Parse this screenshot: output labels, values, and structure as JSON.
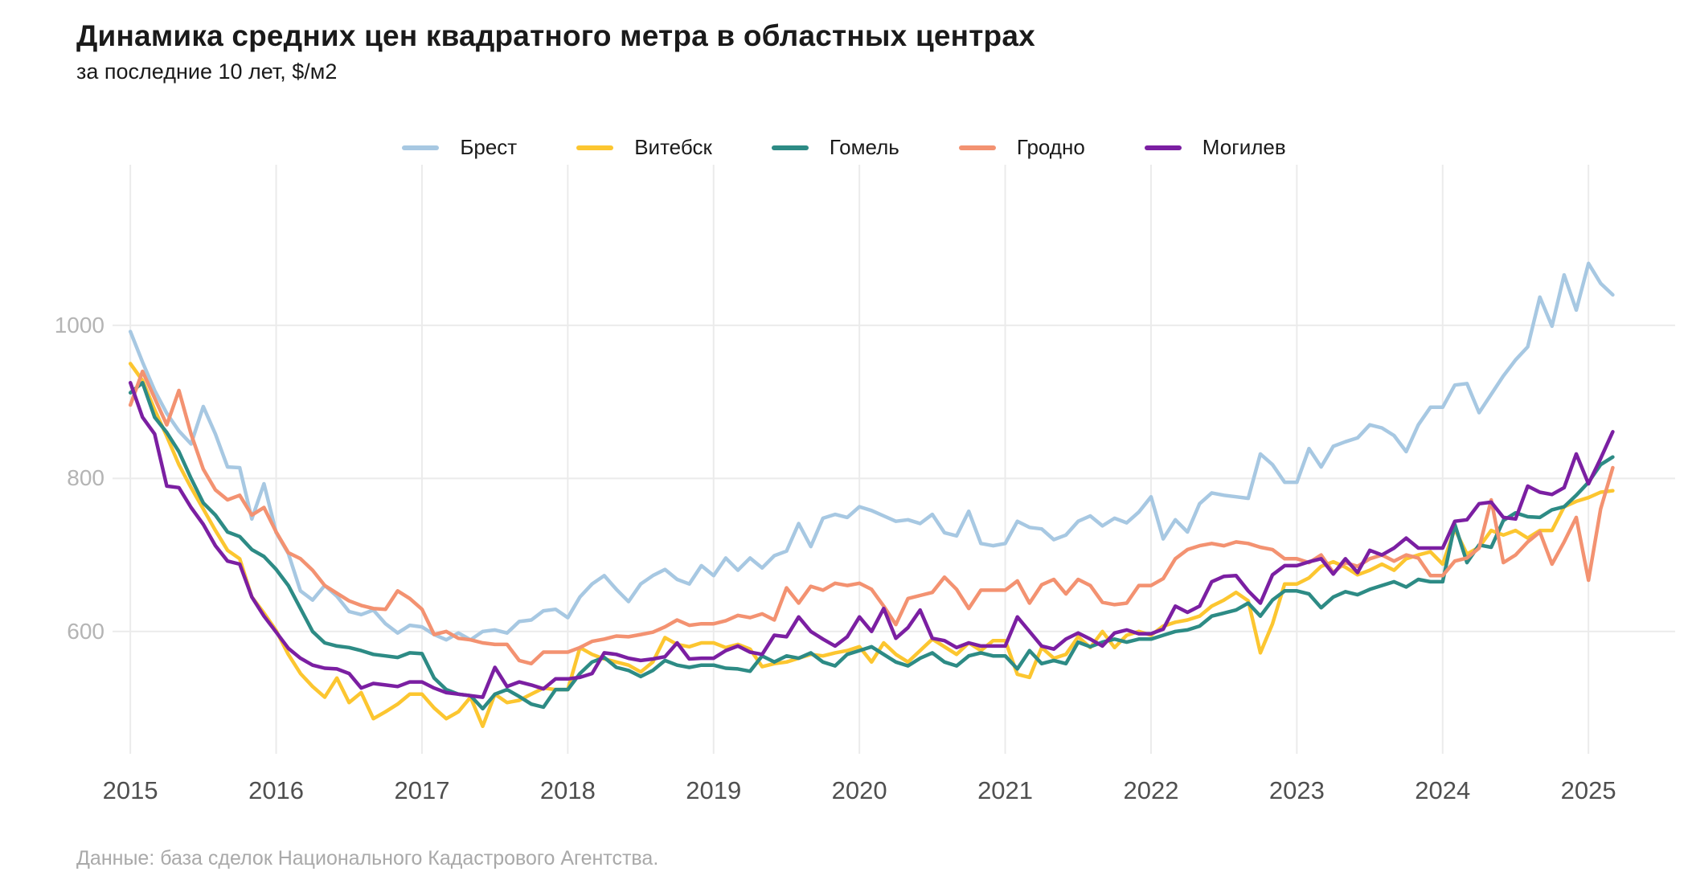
{
  "header": {
    "title": "Динамика средних цен квадратного метра в областных центрах",
    "subtitle": "за последние 10 лет, $/м2"
  },
  "footer": {
    "text": "Данные: база сделок Национального Кадастрового Агентства."
  },
  "colors": {
    "background": "#ffffff",
    "grid": "#ebebeb",
    "y_tick_text": "#b4b4b4",
    "x_tick_text": "#4f4f4f"
  },
  "chart_data": {
    "type": "line",
    "title": "Динамика средних цен квадратного метра в областных центрах",
    "subtitle": "за последние 10 лет, $/м2",
    "xlabel": "",
    "ylabel": "$/м2",
    "x_ticks": [
      2015,
      2016,
      2017,
      2018,
      2019,
      2020,
      2021,
      2022,
      2023,
      2024,
      2025
    ],
    "y_ticks": [
      600,
      800,
      1000
    ],
    "xlim": [
      2014.74,
      2025.6
    ],
    "ylim": [
      438,
      1210
    ],
    "grid": true,
    "legend_position": "top",
    "x_frequency": "monthly",
    "x_start": "2015-01",
    "x_end": "2025-03",
    "series": [
      {
        "name": "Брест",
        "color": "#a7c8e2",
        "values": [
          992,
          952,
          915,
          885,
          862,
          845,
          894,
          858,
          815,
          814,
          747,
          793,
          729,
          702,
          653,
          641,
          660,
          646,
          626,
          622,
          628,
          610,
          598,
          608,
          606,
          596,
          589,
          598,
          589,
          600,
          602,
          598,
          613,
          615,
          627,
          629,
          618,
          645,
          662,
          673,
          655,
          639,
          662,
          673,
          681,
          668,
          662,
          686,
          673,
          696,
          680,
          696,
          683,
          699,
          705,
          741,
          711,
          748,
          753,
          749,
          763,
          758,
          751,
          744,
          746,
          741,
          753,
          729,
          725,
          757,
          715,
          712,
          715,
          744,
          736,
          734,
          720,
          726,
          744,
          751,
          738,
          748,
          742,
          756,
          776,
          721,
          746,
          730,
          767,
          781,
          778,
          776,
          774,
          832,
          818,
          795,
          795,
          839,
          815,
          842,
          848,
          853,
          870,
          866,
          856,
          835,
          870,
          893,
          893,
          922,
          924,
          886,
          910,
          934,
          955,
          972,
          1037,
          999,
          1066,
          1020,
          1081,
          1055,
          1040
        ]
      },
      {
        "name": "Витебск",
        "color": "#fcc630",
        "values": [
          950,
          928,
          890,
          855,
          818,
          788,
          760,
          732,
          706,
          695,
          645,
          624,
          601,
          570,
          545,
          528,
          514,
          539,
          507,
          520,
          486,
          495,
          505,
          518,
          518,
          500,
          486,
          495,
          514,
          476,
          518,
          507,
          510,
          518,
          526,
          524,
          524,
          579,
          570,
          564,
          560,
          556,
          547,
          560,
          592,
          583,
          580,
          585,
          585,
          579,
          583,
          577,
          554,
          558,
          560,
          565,
          570,
          568,
          572,
          575,
          580,
          560,
          585,
          570,
          560,
          575,
          590,
          580,
          570,
          585,
          575,
          588,
          588,
          544,
          540,
          579,
          565,
          570,
          593,
          579,
          600,
          579,
          595,
          600,
          595,
          607,
          612,
          615,
          620,
          633,
          641,
          651,
          640,
          572,
          610,
          662,
          662,
          670,
          685,
          691,
          684,
          674,
          680,
          688,
          680,
          695,
          700,
          704,
          688,
          734,
          701,
          710,
          732,
          726,
          732,
          722,
          732,
          732,
          763,
          770,
          775,
          782,
          784
        ]
      },
      {
        "name": "Гомель",
        "color": "#2d8b85",
        "values": [
          912,
          925,
          880,
          860,
          835,
          800,
          768,
          752,
          730,
          724,
          707,
          698,
          681,
          660,
          630,
          600,
          585,
          581,
          579,
          575,
          570,
          568,
          566,
          572,
          571,
          539,
          524,
          518,
          516,
          499,
          518,
          524,
          515,
          505,
          501,
          524,
          524,
          545,
          560,
          566,
          553,
          549,
          541,
          549,
          562,
          556,
          553,
          556,
          556,
          552,
          551,
          548,
          568,
          560,
          568,
          565,
          572,
          560,
          555,
          570,
          575,
          580,
          570,
          560,
          555,
          565,
          572,
          560,
          555,
          568,
          572,
          568,
          568,
          551,
          575,
          558,
          562,
          558,
          586,
          580,
          586,
          590,
          586,
          590,
          590,
          595,
          600,
          602,
          607,
          620,
          624,
          628,
          637,
          620,
          641,
          653,
          653,
          649,
          631,
          645,
          652,
          648,
          655,
          660,
          665,
          658,
          668,
          665,
          665,
          740,
          690,
          713,
          710,
          745,
          755,
          750,
          749,
          759,
          763,
          778,
          795,
          818,
          828
        ]
      },
      {
        "name": "Гродно",
        "color": "#f39271",
        "values": [
          896,
          940,
          905,
          870,
          915,
          858,
          812,
          785,
          772,
          778,
          752,
          762,
          730,
          703,
          695,
          680,
          660,
          650,
          640,
          634,
          630,
          629,
          653,
          643,
          629,
          596,
          600,
          591,
          589,
          585,
          583,
          583,
          562,
          558,
          573,
          573,
          573,
          579,
          587,
          590,
          594,
          593,
          596,
          599,
          606,
          615,
          608,
          610,
          610,
          614,
          621,
          618,
          623,
          615,
          657,
          637,
          659,
          654,
          663,
          660,
          663,
          655,
          633,
          609,
          643,
          647,
          651,
          671,
          655,
          630,
          654,
          654,
          654,
          666,
          637,
          661,
          668,
          649,
          668,
          660,
          638,
          635,
          637,
          660,
          660,
          669,
          695,
          707,
          712,
          715,
          712,
          717,
          715,
          710,
          707,
          695,
          695,
          690,
          700,
          677,
          690,
          685,
          695,
          700,
          692,
          700,
          696,
          673,
          673,
          692,
          696,
          709,
          772,
          690,
          700,
          717,
          730,
          688,
          717,
          749,
          667,
          760,
          814
        ]
      },
      {
        "name": "Могилев",
        "color": "#7b1fa2",
        "values": [
          925,
          880,
          858,
          790,
          788,
          762,
          740,
          712,
          692,
          688,
          645,
          620,
          599,
          578,
          565,
          556,
          552,
          551,
          545,
          526,
          532,
          530,
          528,
          534,
          534,
          526,
          520,
          518,
          516,
          514,
          553,
          528,
          534,
          530,
          525,
          538,
          538,
          540,
          545,
          572,
          570,
          565,
          562,
          564,
          567,
          585,
          564,
          565,
          565,
          575,
          581,
          573,
          570,
          595,
          593,
          619,
          600,
          590,
          581,
          593,
          619,
          600,
          630,
          591,
          605,
          628,
          591,
          588,
          579,
          585,
          581,
          581,
          581,
          619,
          600,
          581,
          577,
          590,
          598,
          590,
          581,
          598,
          602,
          597,
          597,
          603,
          633,
          625,
          633,
          665,
          672,
          673,
          653,
          637,
          674,
          686,
          686,
          691,
          695,
          675,
          695,
          677,
          706,
          700,
          709,
          722,
          709,
          709,
          709,
          744,
          746,
          767,
          769,
          749,
          747,
          790,
          782,
          779,
          788,
          832,
          793,
          826,
          861
        ]
      }
    ]
  }
}
